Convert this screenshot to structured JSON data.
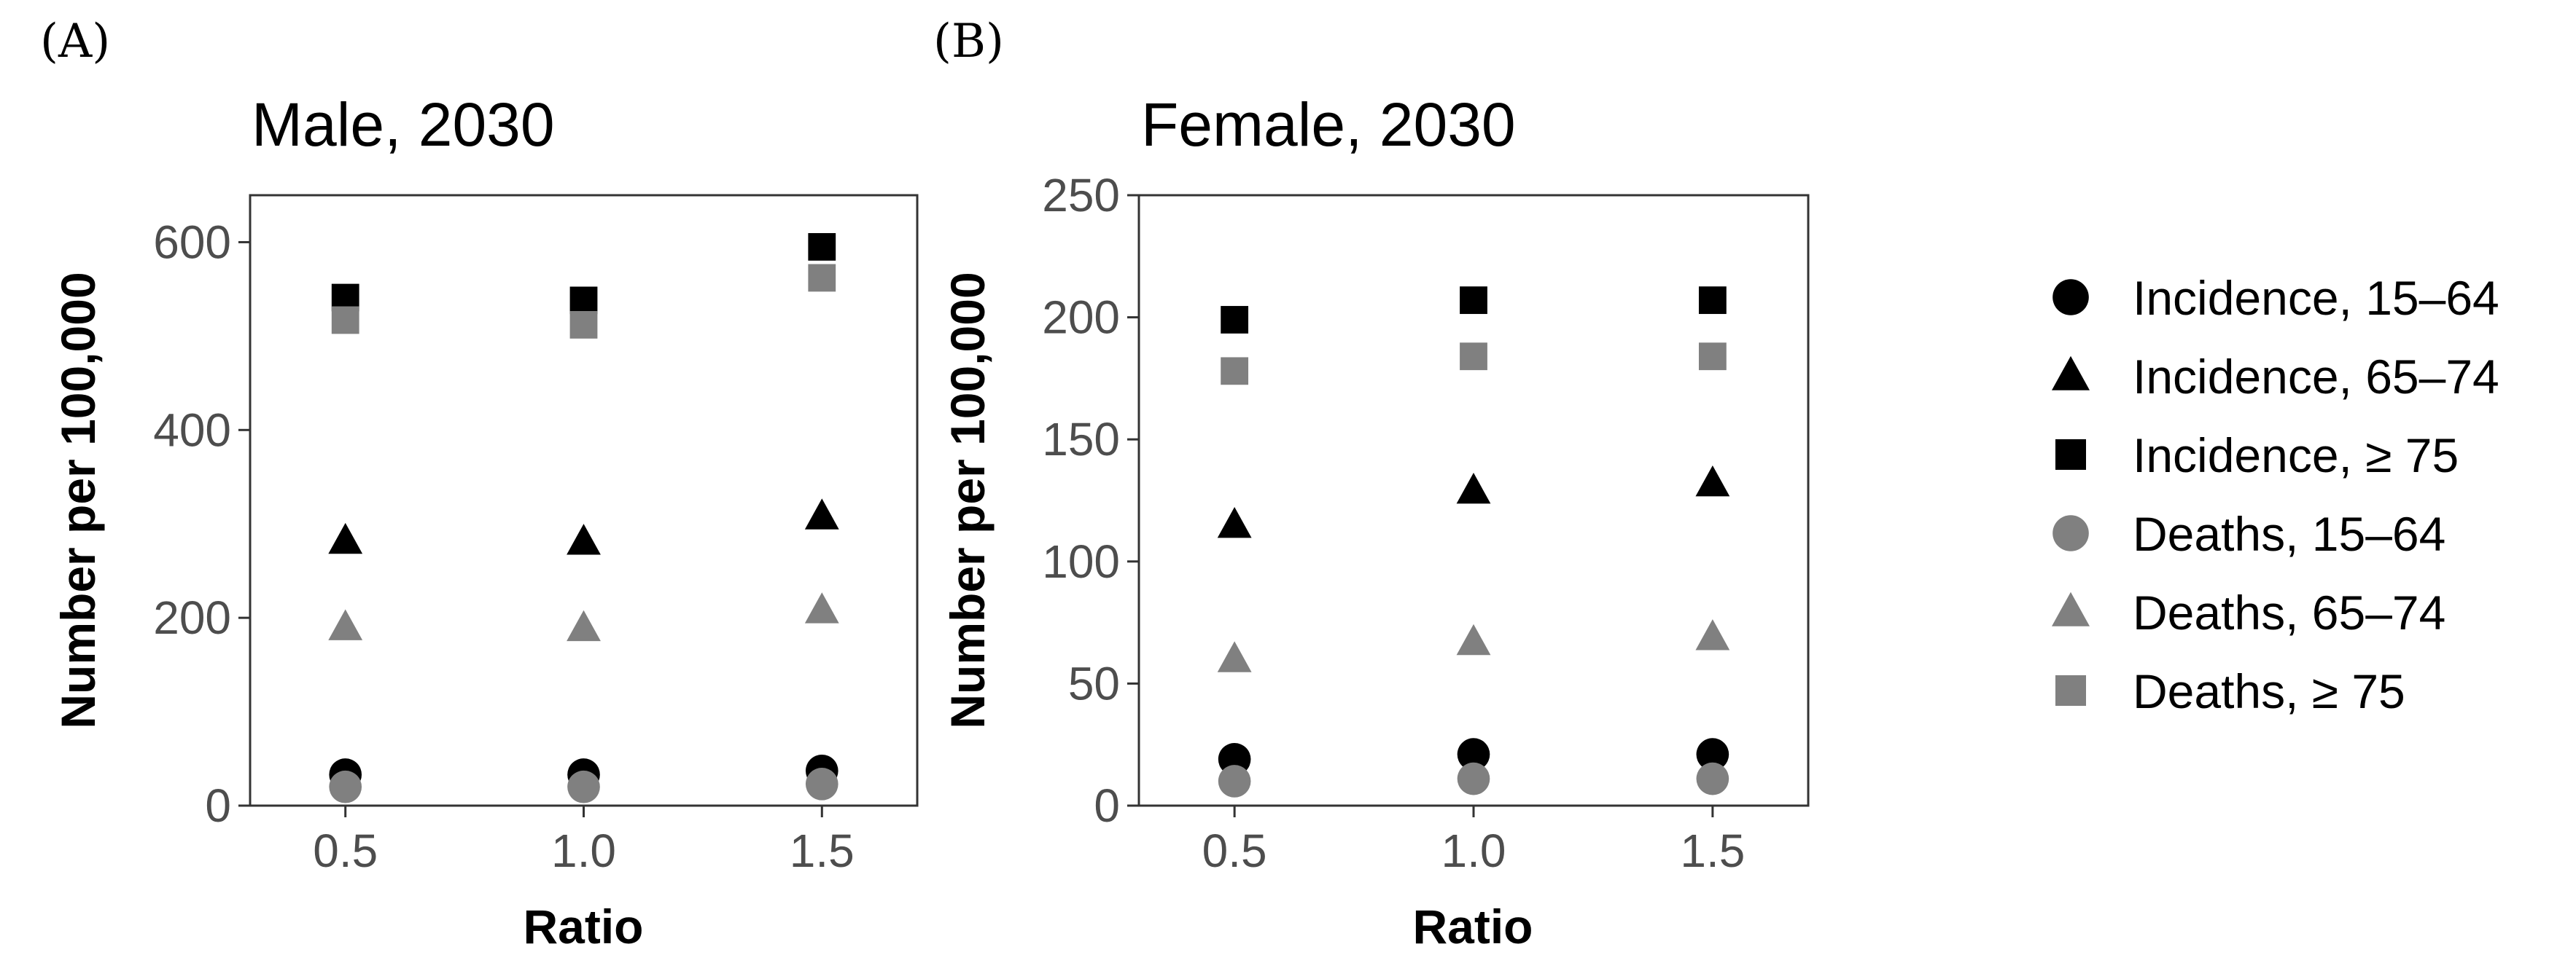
{
  "colors": {
    "incidence": "#000000",
    "deaths": "#808080",
    "tick_text": "#4d4d4d",
    "frame": "#333333"
  },
  "legend": [
    {
      "label": "Incidence, 15–64",
      "shape": "circle",
      "color": "#000000"
    },
    {
      "label": "Incidence, 65–74",
      "shape": "triangle",
      "color": "#000000"
    },
    {
      "label": "Incidence, ≥ 75",
      "shape": "square",
      "color": "#000000"
    },
    {
      "label": "Deaths, 15–64",
      "shape": "circle",
      "color": "#808080"
    },
    {
      "label": "Deaths, 65–74",
      "shape": "triangle",
      "color": "#808080"
    },
    {
      "label": "Deaths, ≥ 75",
      "shape": "square",
      "color": "#808080"
    }
  ],
  "chart_data": [
    {
      "panel": "(A)",
      "type": "scatter",
      "title": "Male, 2030",
      "xlabel": "Ratio",
      "ylabel": "Number per 100,000",
      "x": [
        0.5,
        1.0,
        1.5
      ],
      "x_ticks": [
        "0.5",
        "1.0",
        "1.5"
      ],
      "xlim": [
        0.3,
        1.7
      ],
      "y_ticks": [
        0,
        200,
        400,
        600
      ],
      "ylim": [
        0,
        650
      ],
      "series": [
        {
          "name": "Incidence, 15–64",
          "shape": "circle",
          "color": "#000000",
          "values": [
            33,
            33,
            37
          ]
        },
        {
          "name": "Incidence, 65–74",
          "shape": "triangle",
          "color": "#000000",
          "values": [
            282,
            281,
            308
          ]
        },
        {
          "name": "Incidence, ≥ 75",
          "shape": "square",
          "color": "#000000",
          "values": [
            541,
            538,
            595
          ]
        },
        {
          "name": "Deaths, 15–64",
          "shape": "circle",
          "color": "#808080",
          "values": [
            20,
            20,
            23
          ]
        },
        {
          "name": "Deaths, 65–74",
          "shape": "triangle",
          "color": "#808080",
          "values": [
            190,
            189,
            208
          ]
        },
        {
          "name": "Deaths, ≥ 75",
          "shape": "square",
          "color": "#808080",
          "values": [
            517,
            512,
            562
          ]
        }
      ]
    },
    {
      "panel": "(B)",
      "type": "scatter",
      "title": "Female, 2030",
      "xlabel": "Ratio",
      "ylabel": "Number per 100,000",
      "x": [
        0.5,
        1.0,
        1.5
      ],
      "x_ticks": [
        "0.5",
        "1.0",
        "1.5"
      ],
      "xlim": [
        0.3,
        1.7
      ],
      "y_ticks": [
        0,
        50,
        100,
        150,
        200,
        250
      ],
      "ylim": [
        0,
        250
      ],
      "series": [
        {
          "name": "Incidence, 15–64",
          "shape": "circle",
          "color": "#000000",
          "values": [
            19,
            21,
            21
          ]
        },
        {
          "name": "Incidence, 65–74",
          "shape": "triangle",
          "color": "#000000",
          "values": [
            115,
            129,
            132
          ]
        },
        {
          "name": "Incidence, ≥ 75",
          "shape": "square",
          "color": "#000000",
          "values": [
            199,
            207,
            207
          ]
        },
        {
          "name": "Deaths, 15–64",
          "shape": "circle",
          "color": "#808080",
          "values": [
            10,
            11,
            11
          ]
        },
        {
          "name": "Deaths, 65–74",
          "shape": "triangle",
          "color": "#808080",
          "values": [
            60,
            67,
            69
          ]
        },
        {
          "name": "Deaths, ≥ 75",
          "shape": "square",
          "color": "#808080",
          "values": [
            178,
            184,
            184
          ]
        }
      ]
    }
  ]
}
